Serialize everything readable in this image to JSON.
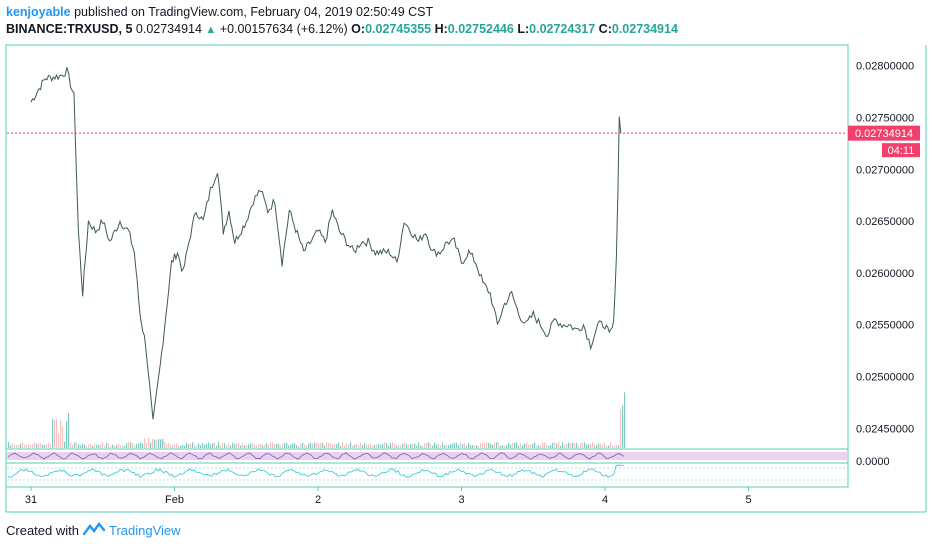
{
  "header": {
    "author": "kenjoyable",
    "published": "published on TradingView.com, February 04, 2019 02:50:49 CST",
    "symbol": "BINANCE:TRXUSD, 5",
    "last": "0.02734914",
    "change": "+0.00157634 (+6.12%)",
    "open_label": "O:",
    "open": "0.02745355",
    "high_label": "H:",
    "high": "0.02752446",
    "low_label": "L:",
    "low": "0.02724317",
    "close_label": "C:",
    "close": "0.02734914"
  },
  "price_tag": "0.02734914",
  "countdown": "04:11",
  "footer": {
    "created": "Created with",
    "brand": "TradingView"
  },
  "colors": {
    "up": "#26a69a",
    "down": "#ef5350",
    "tag": "#f23f6c",
    "accent": "#2196f3",
    "axis": "#4fd1b5"
  },
  "chart_data": {
    "type": "line",
    "y_ticks": [
      "0.02800000",
      "0.02750000",
      "0.02700000",
      "0.02650000",
      "0.02600000",
      "0.02550000",
      "0.02500000",
      "0.02450000"
    ],
    "indicator_tick": "0.0000",
    "x_ticks": [
      "31",
      "Feb",
      "2",
      "3",
      "4",
      "5"
    ],
    "ylim": [
      0.0243,
      0.0282
    ],
    "current_price": 0.02734914,
    "series": [
      {
        "x": [
          0,
          0.1,
          0.2,
          0.25,
          0.3,
          0.33,
          0.36,
          0.4,
          0.45,
          0.5,
          0.55,
          0.62,
          0.68,
          0.72,
          0.76,
          0.8,
          0.85,
          0.9,
          0.94,
          0.98,
          1.02,
          1.06,
          1.1,
          1.15,
          1.2,
          1.25,
          1.3,
          1.34,
          1.38,
          1.42,
          1.5,
          1.55,
          1.6,
          1.65,
          1.7,
          1.75,
          1.8,
          1.9,
          2.0,
          2.05,
          2.1,
          2.15,
          2.2,
          2.25,
          2.3,
          2.35,
          2.4,
          2.5,
          2.55,
          2.6,
          2.65,
          2.7,
          2.75,
          2.8,
          2.85,
          2.9,
          2.95,
          3.0,
          3.05,
          3.1,
          3.15,
          3.2,
          3.25,
          3.3,
          3.35,
          3.4,
          3.45,
          3.5,
          3.55,
          3.6,
          3.65,
          3.7,
          3.75,
          3.8,
          3.85,
          3.9,
          3.95,
          4.0,
          4.03,
          4.06,
          4.08,
          4.09,
          4.1,
          4.11
        ],
        "values": [
          0.02765,
          0.02788,
          0.0279,
          0.02795,
          0.0277,
          0.0264,
          0.0258,
          0.0265,
          0.0264,
          0.0265,
          0.0263,
          0.0265,
          0.0264,
          0.0262,
          0.0256,
          0.0253,
          0.02455,
          0.0251,
          0.0256,
          0.0261,
          0.0262,
          0.026,
          0.0263,
          0.0266,
          0.0265,
          0.0268,
          0.027,
          0.0264,
          0.0266,
          0.0263,
          0.0265,
          0.0267,
          0.0268,
          0.0266,
          0.0267,
          0.0261,
          0.0266,
          0.0262,
          0.0264,
          0.0263,
          0.0266,
          0.0264,
          0.0263,
          0.0262,
          0.0263,
          0.0263,
          0.0262,
          0.0262,
          0.0261,
          0.0265,
          0.0264,
          0.0263,
          0.0264,
          0.0262,
          0.0262,
          0.0263,
          0.0263,
          0.0261,
          0.0262,
          0.0261,
          0.0259,
          0.0258,
          0.0255,
          0.0257,
          0.0258,
          0.0256,
          0.0255,
          0.0256,
          0.0255,
          0.0254,
          0.02555,
          0.0255,
          0.0255,
          0.02545,
          0.0255,
          0.0253,
          0.0255,
          0.0255,
          0.0254,
          0.0255,
          0.0262,
          0.0268,
          0.02752,
          0.02735
        ]
      }
    ]
  }
}
